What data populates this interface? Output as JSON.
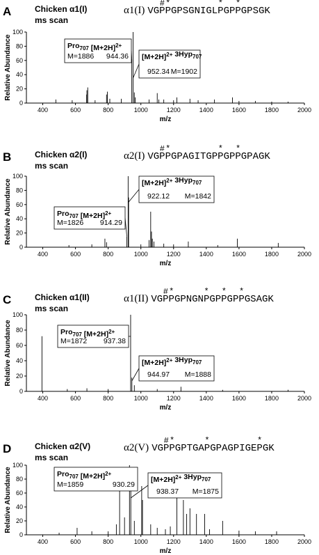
{
  "chart_data": [
    {
      "type": "stem",
      "panel_label": "A",
      "title": "Chicken α1(I)",
      "subtitle": "ms scan",
      "chain": "α1(I)",
      "sequence": "VGPPGPSGNIGLPGPPGPSGK",
      "sequence_marks": [
        {
          "symbol": "#",
          "residue": 2
        },
        {
          "symbol": "*",
          "residue": 3
        },
        {
          "symbol": "*",
          "residue": 12
        },
        {
          "symbol": "*",
          "residue": 15
        }
      ],
      "xlabel": "m/z",
      "ylabel": "Relative Abundance",
      "xlim": [
        300,
        2000
      ],
      "ylim": [
        0,
        100
      ],
      "xticks": [
        400,
        600,
        800,
        1000,
        1200,
        1400,
        1600,
        1800,
        2000
      ],
      "yticks": [
        0,
        20,
        40,
        60,
        80,
        100
      ],
      "color": "#000000",
      "x": [
        480,
        580,
        668,
        670,
        675,
        720,
        790,
        795,
        810,
        880,
        944.36,
        952.34,
        960,
        966,
        1050,
        1100,
        1110,
        1140,
        1200,
        1220,
        1300,
        1350,
        1450,
        1560,
        1600,
        1700,
        1800,
        1900
      ],
      "values": [
        5,
        4,
        12,
        18,
        22,
        4,
        12,
        16,
        6,
        6,
        62,
        100,
        15,
        8,
        5,
        14,
        5,
        5,
        4,
        8,
        6,
        4,
        5,
        8,
        3,
        3,
        2,
        2
      ],
      "annotations": [
        {
          "parts": [
            {
              "text": "Pro"
            },
            {
              "text": "707",
              "script": "sub"
            },
            {
              "text": " [M+2H]"
            },
            {
              "text": "2+",
              "script": "sup"
            }
          ],
          "mass": "M=1886",
          "mz": 944.36
        },
        {
          "parts": [
            {
              "text": "[M+2H]"
            },
            {
              "text": "2+",
              "script": "sup"
            },
            {
              "text": " 3Hyp"
            },
            {
              "text": "707",
              "script": "sub"
            }
          ],
          "mass": "M=1902",
          "mz": 952.34
        }
      ]
    },
    {
      "type": "stem",
      "panel_label": "B",
      "title": "Chicken α2(I)",
      "subtitle": "ms scan",
      "chain": "α2(I)",
      "sequence": "VGPPGPAGITGPPGPPGPAGK",
      "sequence_marks": [
        {
          "symbol": "#",
          "residue": 2
        },
        {
          "symbol": "*",
          "residue": 3
        },
        {
          "symbol": "*",
          "residue": 12
        },
        {
          "symbol": "*",
          "residue": 15
        }
      ],
      "xlabel": "m/z",
      "ylabel": "Relative Abundance",
      "xlim": [
        300,
        2000
      ],
      "ylim": [
        0,
        100
      ],
      "xticks": [
        400,
        600,
        800,
        1000,
        1200,
        1400,
        1600,
        1800,
        2000
      ],
      "yticks": [
        0,
        20,
        40,
        60,
        80,
        100
      ],
      "color": "#000000",
      "x": [
        560,
        700,
        780,
        790,
        914.29,
        922.12,
        925,
        1000,
        1050,
        1060,
        1065,
        1070,
        1080,
        1140,
        1200,
        1290,
        1470,
        1590,
        1840
      ],
      "values": [
        3,
        4,
        12,
        7,
        15,
        100,
        70,
        4,
        10,
        50,
        22,
        12,
        8,
        5,
        4,
        8,
        3,
        12,
        6
      ],
      "annotations": [
        {
          "parts": [
            {
              "text": "Pro"
            },
            {
              "text": "707",
              "script": "sub"
            },
            {
              "text": " [M+2H]"
            },
            {
              "text": "2+",
              "script": "sup"
            }
          ],
          "mass": "M=1826",
          "mz": 914.29
        },
        {
          "parts": [
            {
              "text": "[M+2H]"
            },
            {
              "text": "2+",
              "script": "sup"
            },
            {
              "text": " 3Hyp"
            },
            {
              "text": "707",
              "script": "sub"
            }
          ],
          "mass": "M=1842",
          "mz": 922.12
        }
      ]
    },
    {
      "type": "stem",
      "panel_label": "C",
      "title": "Chicken α1(II)",
      "subtitle": "ms scan",
      "chain": "α1(II)",
      "sequence": "VGPPGPNGNPGPPGPPGSAGK",
      "sequence_marks": [
        {
          "symbol": "#",
          "residue": 2
        },
        {
          "symbol": "*",
          "residue": 3
        },
        {
          "symbol": "*",
          "residue": 9
        },
        {
          "symbol": "*",
          "residue": 12
        },
        {
          "symbol": "*",
          "residue": 15
        }
      ],
      "xlabel": "m/z",
      "ylabel": "Relative Abundance",
      "xlim": [
        300,
        2000
      ],
      "ylim": [
        0,
        100
      ],
      "xticks": [
        400,
        600,
        800,
        1000,
        1200,
        1400,
        1600,
        1800,
        2000
      ],
      "yticks": [
        0,
        20,
        40,
        60,
        80,
        100
      ],
      "color": "#000000",
      "x": [
        395,
        550,
        670,
        800,
        937.38,
        944.97,
        960,
        1100,
        1245,
        1500,
        1900
      ],
      "values": [
        72,
        3,
        4,
        3,
        100,
        18,
        8,
        3,
        6,
        2,
        2
      ],
      "annotations": [
        {
          "parts": [
            {
              "text": "Pro"
            },
            {
              "text": "707",
              "script": "sub"
            },
            {
              "text": " [M+2H]"
            },
            {
              "text": "2+",
              "script": "sup"
            }
          ],
          "mass": "M=1872",
          "mz": 937.38
        },
        {
          "parts": [
            {
              "text": "[M+2H]"
            },
            {
              "text": "2+",
              "script": "sup"
            },
            {
              "text": " 3Hyp"
            },
            {
              "text": "707",
              "script": "sub"
            }
          ],
          "mass": "M=1888",
          "mz": 944.97
        }
      ]
    },
    {
      "type": "stem",
      "panel_label": "D",
      "title": "Chicken α2(V)",
      "subtitle": "ms scan",
      "chain": "α2(V)",
      "sequence": "VGPPGPTGAPGPAGPIGEPGK",
      "sequence_marks": [
        {
          "symbol": "#",
          "residue": 2
        },
        {
          "symbol": "*",
          "residue": 3
        },
        {
          "symbol": "*",
          "residue": 9
        },
        {
          "symbol": "*",
          "residue": 18
        }
      ],
      "xlabel": "m/z",
      "ylabel": "Relative Abundance",
      "xlim": [
        300,
        2000
      ],
      "ylim": [
        0,
        100
      ],
      "xticks": [
        400,
        600,
        800,
        1000,
        1200,
        1400,
        1600,
        1800,
        2000
      ],
      "yticks": [
        0,
        20,
        40,
        60,
        80,
        100
      ],
      "color": "#000000",
      "x": [
        500,
        610,
        700,
        800,
        850,
        870,
        900,
        930.29,
        938.37,
        960,
        1005,
        1010,
        1060,
        1100,
        1150,
        1180,
        1220,
        1260,
        1280,
        1300,
        1340,
        1390,
        1420,
        1500,
        1600,
        1700,
        1830
      ],
      "values": [
        3,
        10,
        5,
        5,
        15,
        65,
        25,
        100,
        70,
        20,
        70,
        50,
        15,
        10,
        8,
        12,
        60,
        50,
        30,
        38,
        30,
        30,
        8,
        20,
        6,
        5,
        5
      ],
      "annotations": [
        {
          "parts": [
            {
              "text": "Pro"
            },
            {
              "text": "707",
              "script": "sub"
            },
            {
              "text": " [M+2H]"
            },
            {
              "text": "2+",
              "script": "sup"
            }
          ],
          "mass": "M=1859",
          "mz": 930.29
        },
        {
          "parts": [
            {
              "text": "[M+2H]"
            },
            {
              "text": "2+",
              "script": "sup"
            },
            {
              "text": " 3Hyp"
            },
            {
              "text": "707",
              "script": "sub"
            }
          ],
          "mass": "M=1875",
          "mz": 938.37
        }
      ]
    }
  ]
}
